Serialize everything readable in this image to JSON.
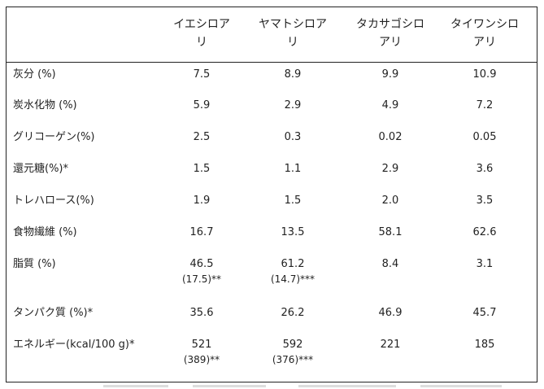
{
  "columns": [
    "イエシロア\nリ",
    "ヤマトシロア\nリ",
    "タカサゴシロ\nアリ",
    "タイワンシロ\nアリ"
  ],
  "rows": [
    {
      "label": "灰分 (%)",
      "values": [
        "7.5",
        "8.9",
        "9.9",
        "10.9"
      ],
      "subs": [
        "",
        "",
        "",
        ""
      ]
    },
    {
      "label": "炭水化物 (%)",
      "values": [
        "5.9",
        "2.9",
        "4.9",
        "7.2"
      ],
      "subs": [
        "",
        "",
        "",
        ""
      ]
    },
    {
      "label": "グリコーゲン(%)",
      "values": [
        "2.5",
        "0.3",
        "0.02",
        "0.05"
      ],
      "subs": [
        "",
        "",
        "",
        ""
      ]
    },
    {
      "label": "還元糖(%)*",
      "values": [
        "1.5",
        "1.1",
        "2.9",
        "3.6"
      ],
      "subs": [
        "",
        "",
        "",
        ""
      ]
    },
    {
      "label": "トレハロース(%)",
      "values": [
        "1.9",
        "1.5",
        "2.0",
        "3.5"
      ],
      "subs": [
        "",
        "",
        "",
        ""
      ]
    },
    {
      "label": "食物繊維 (%)",
      "values": [
        "16.7",
        "13.5",
        "58.1",
        "62.6"
      ],
      "subs": [
        "",
        "",
        "",
        ""
      ]
    },
    {
      "label": "脂質 (%)",
      "values": [
        "46.5",
        "61.2",
        "8.4",
        "3.1"
      ],
      "subs": [
        "(17.5)**",
        "(14.7)***",
        "",
        ""
      ]
    },
    {
      "label": "タンパク質 (%)*",
      "values": [
        "35.6",
        "26.2",
        "46.9",
        "45.7"
      ],
      "subs": [
        "",
        "",
        "",
        ""
      ]
    },
    {
      "label": "エネルギー(kcal/100 g)*",
      "values": [
        "521",
        "592",
        "221",
        "185"
      ],
      "subs": [
        "(389)**",
        "(376)***",
        "",
        ""
      ]
    }
  ]
}
